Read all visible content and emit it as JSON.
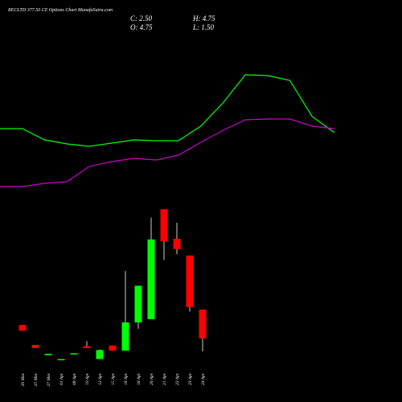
{
  "chart_data": [
    {
      "type": "candlestick",
      "title": "RECLTD 377.50 CE Options Chart MunafaSutra.com",
      "info": [
        "C: 2.50",
        "H: 4.75",
        "O: 4.75",
        "L: 1.50"
      ],
      "categories": [
        "20 Mar",
        "25 Mar",
        "27 Mar",
        "01 Apr",
        "08 Apr",
        "10 Apr",
        "12 Apr",
        "15 Apr",
        "16 Apr",
        "18 Apr",
        "20 Apr",
        "21 Apr",
        "22 Apr",
        "23 Apr",
        "24 Apr"
      ],
      "open": [
        3.55,
        2.0,
        1.2,
        0.9,
        1.35,
        1.9,
        0.9,
        1.95,
        1.55,
        3.75,
        4.0,
        12.55,
        10.25,
        8.95,
        4.75
      ],
      "high": [
        3.55,
        2.0,
        1.3,
        0.9,
        1.35,
        2.3,
        1.65,
        1.95,
        7.75,
        6.6,
        11.9,
        12.55,
        11.5,
        8.95,
        4.75
      ],
      "low": [
        3.1,
        1.75,
        1.2,
        0.9,
        1.35,
        1.75,
        0.9,
        1.55,
        1.55,
        3.25,
        4.0,
        8.6,
        9.05,
        4.6,
        1.5
      ],
      "close": [
        3.1,
        1.75,
        1.3,
        0.9,
        1.35,
        1.75,
        1.6,
        1.55,
        3.75,
        6.6,
        10.2,
        10.05,
        9.45,
        4.95,
        2.5
      ],
      "up_color": "#00ff00",
      "down_color": "#ff0000",
      "ylim": [
        0,
        14
      ]
    },
    {
      "type": "line",
      "categories": [
        null,
        null,
        null,
        null,
        null,
        null,
        null,
        null,
        null,
        null,
        null,
        null,
        null,
        null,
        null,
        null
      ],
      "series": [
        {
          "color": "#00ff00",
          "values": [
            10,
            10,
            8.6,
            8.1,
            7.8,
            8.2,
            8.6,
            8.5,
            8.5,
            10.3,
            13.2,
            16.7,
            16.6,
            16,
            11.5,
            9.5
          ]
        },
        {
          "color": "#cc00cc",
          "values": [
            2.8,
            2.8,
            3.2,
            3.4,
            5.3,
            5.9,
            6.3,
            6.1,
            6.7,
            8.3,
            9.8,
            11.1,
            11.2,
            11.2,
            10.3,
            10.0
          ]
        }
      ],
      "ylim": [
        0,
        26
      ]
    }
  ]
}
